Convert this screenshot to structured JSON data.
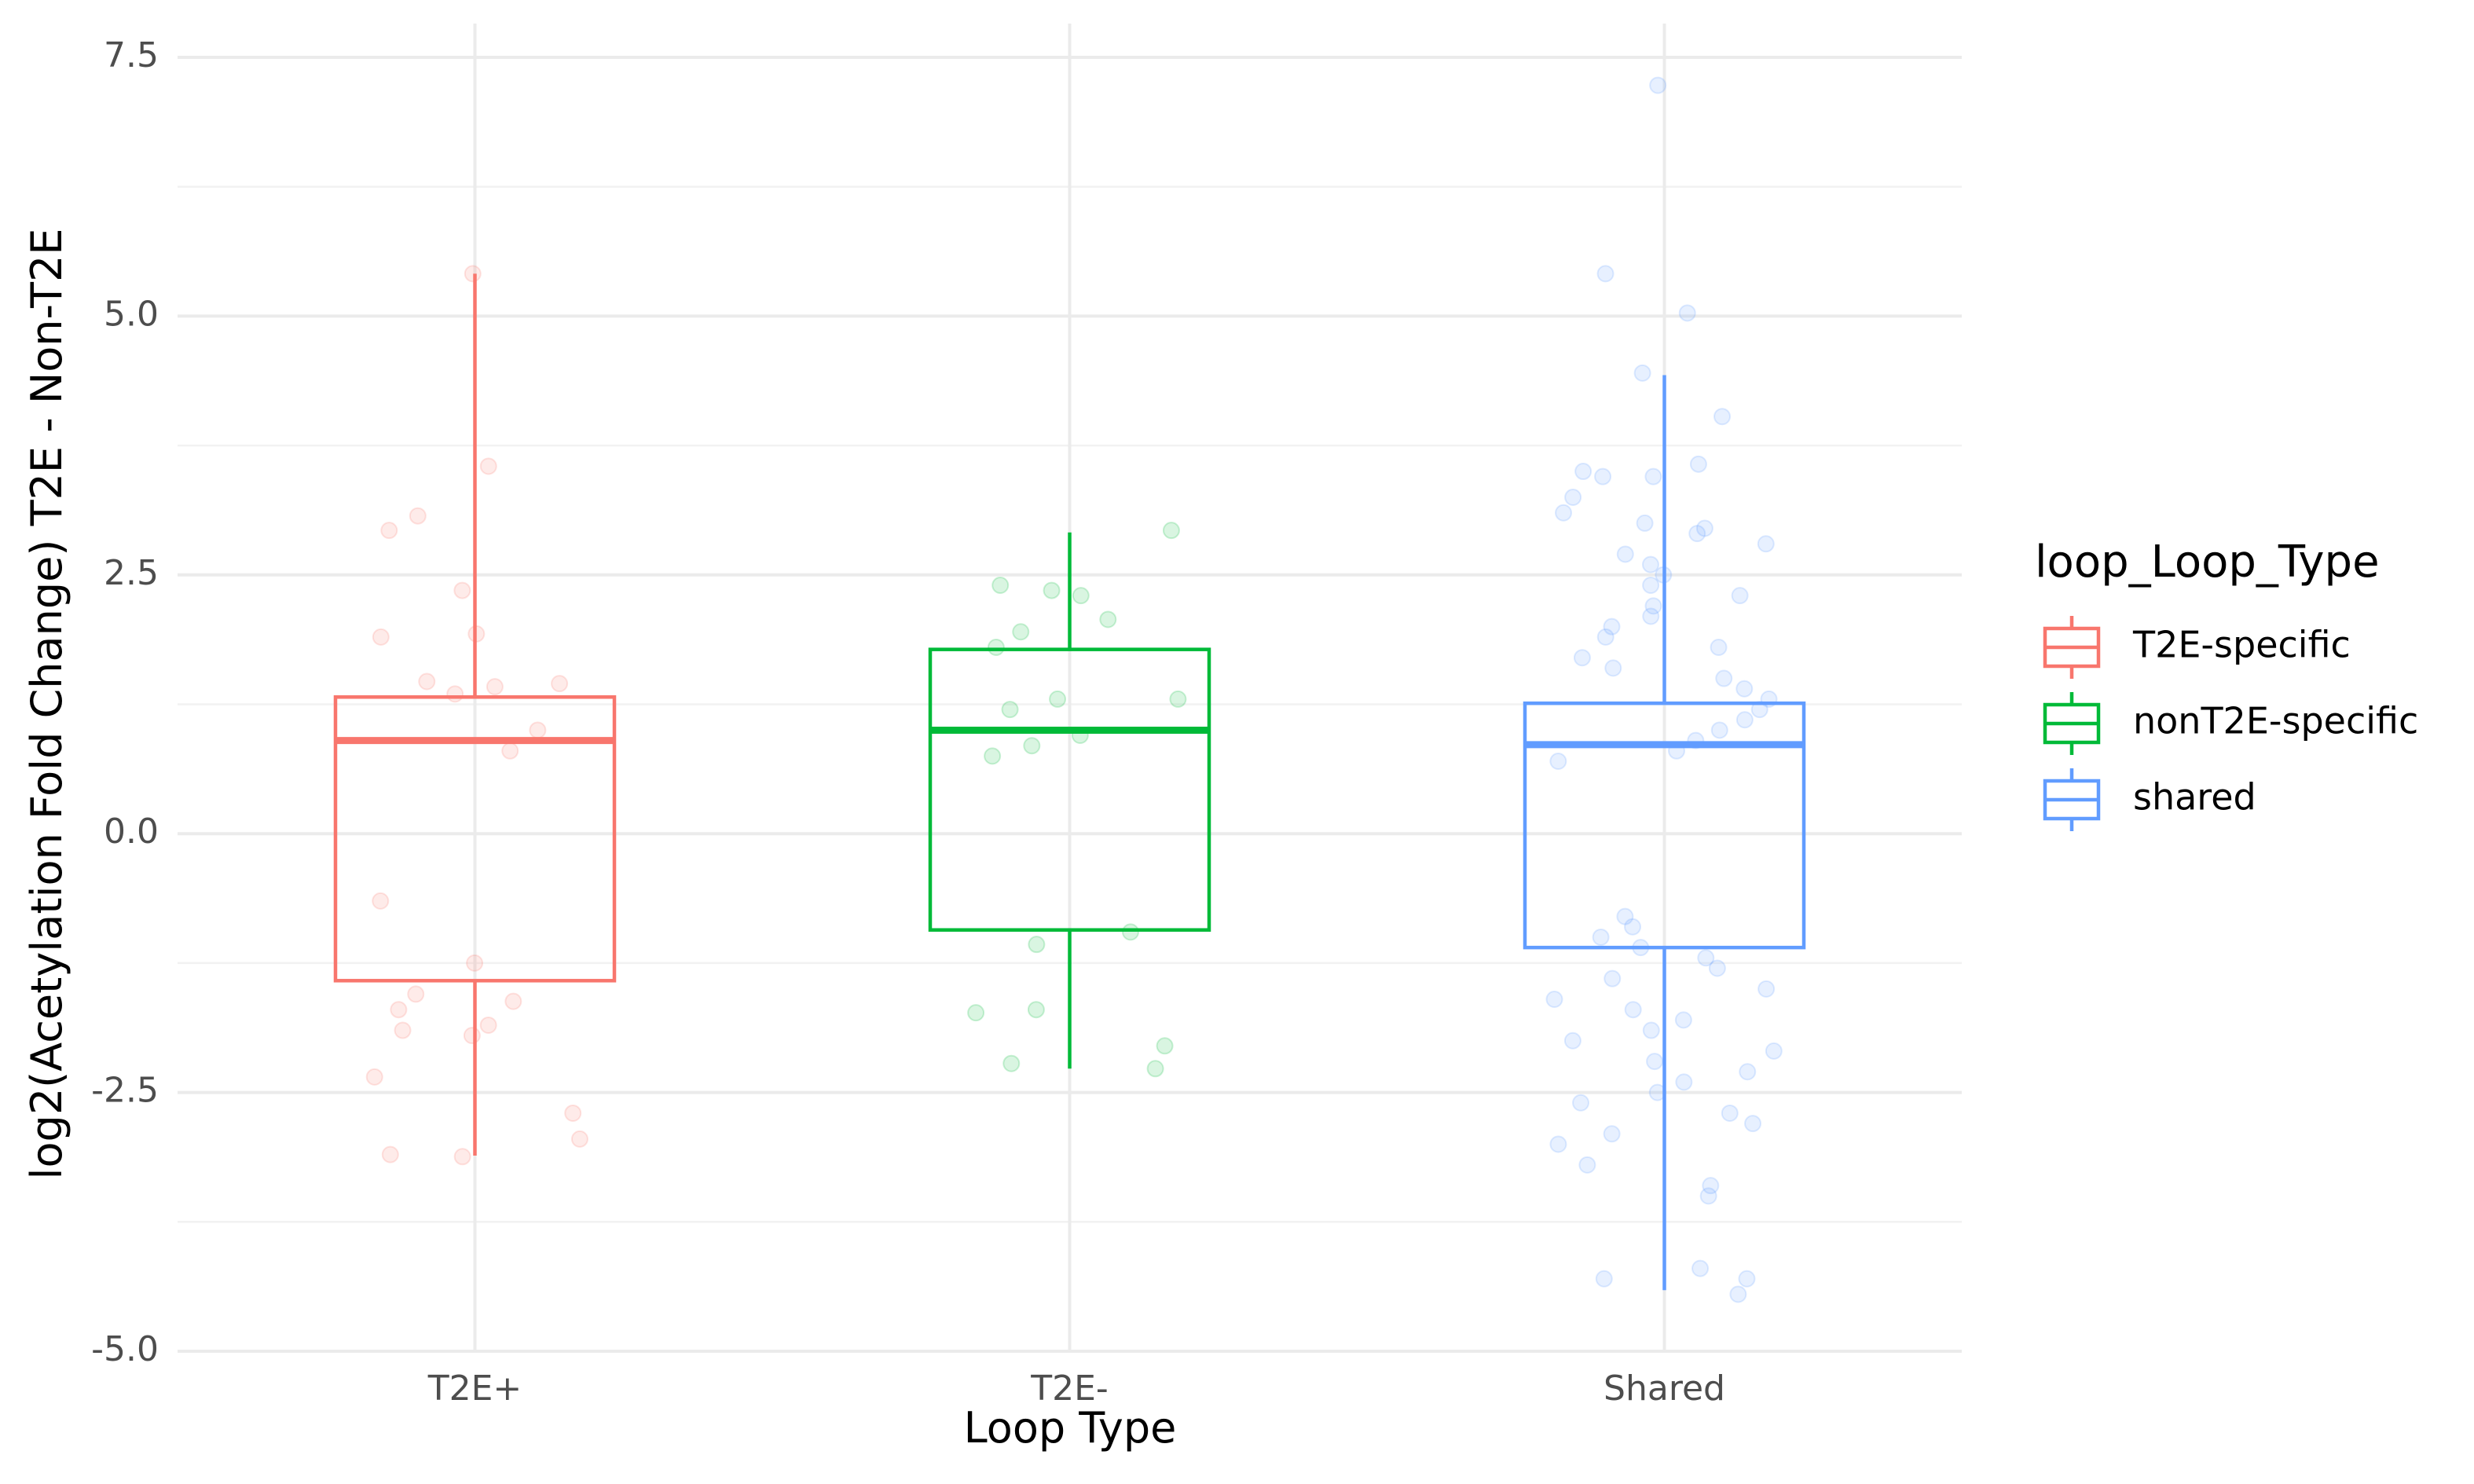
{
  "chart_data": {
    "type": "boxplot",
    "x_label": "Loop Type",
    "y_label": "log2(Acetylation Fold Change) T2E - Non-T2E",
    "categories": [
      "T2E+",
      "T2E-",
      "Shared"
    ],
    "ylim": [
      -5,
      7.5
    ],
    "yticks": [
      {
        "value": -5,
        "label": "-5.0"
      },
      {
        "value": -2.5,
        "label": "-2.5"
      },
      {
        "value": 0,
        "label": "0.0"
      },
      {
        "value": 2.5,
        "label": "2.5"
      },
      {
        "value": 5,
        "label": "5.0"
      },
      {
        "value": 7.5,
        "label": "7.5"
      }
    ],
    "minor_yticks": [
      -3.75,
      -1.25,
      1.25,
      3.75,
      6.25
    ],
    "grid": true,
    "legend_title": "loop_Loop_Type",
    "legend_position": "right",
    "series": [
      {
        "name": "T2E-specific",
        "color": "#F8766D",
        "whisker_low": -3.11,
        "q1": -1.42,
        "median": 0.9,
        "q3": 1.32,
        "whisker_high": 5.41,
        "points": [
          5.41,
          3.55,
          2.93,
          3.07,
          2.35,
          1.93,
          1.9,
          1.45,
          1.42,
          1.35,
          1.47,
          1.0,
          0.8,
          -0.65,
          -1.25,
          -1.55,
          -1.62,
          -1.7,
          -1.85,
          -1.95,
          -1.9,
          -2.35,
          -2.7,
          -2.95,
          -3.1,
          -3.12
        ]
      },
      {
        "name": "nonT2E-specific",
        "color": "#00BA38",
        "whisker_low": -2.27,
        "q1": -0.93,
        "median": 1.0,
        "q3": 1.78,
        "whisker_high": 2.91,
        "points": [
          2.93,
          2.4,
          2.35,
          2.3,
          2.07,
          1.95,
          1.8,
          1.3,
          1.3,
          1.2,
          0.95,
          0.85,
          0.75,
          -0.95,
          -1.07,
          -1.7,
          -1.73,
          -2.05,
          -2.22,
          -2.27
        ]
      },
      {
        "name": "shared",
        "color": "#619CFF",
        "whisker_low": -4.41,
        "q1": -1.1,
        "median": 0.86,
        "q3": 1.26,
        "whisker_high": 4.43,
        "points": [
          7.23,
          5.41,
          5.03,
          4.45,
          4.03,
          3.57,
          3.5,
          3.45,
          3.45,
          3.25,
          3.1,
          3.0,
          2.95,
          2.9,
          2.8,
          2.7,
          2.6,
          2.5,
          2.4,
          2.3,
          2.2,
          2.1,
          2.0,
          1.9,
          1.8,
          1.7,
          1.6,
          1.5,
          1.4,
          1.3,
          1.2,
          1.1,
          1.0,
          0.9,
          0.8,
          0.7,
          -0.8,
          -0.9,
          -1.0,
          -1.1,
          -1.2,
          -1.3,
          -1.4,
          -1.5,
          -1.6,
          -1.7,
          -1.8,
          -1.9,
          -2.0,
          -2.1,
          -2.2,
          -2.3,
          -2.4,
          -2.5,
          -2.6,
          -2.7,
          -2.8,
          -2.9,
          -3.0,
          -3.2,
          -3.4,
          -3.5,
          -4.2,
          -4.3,
          -4.3,
          -4.45
        ]
      }
    ]
  }
}
